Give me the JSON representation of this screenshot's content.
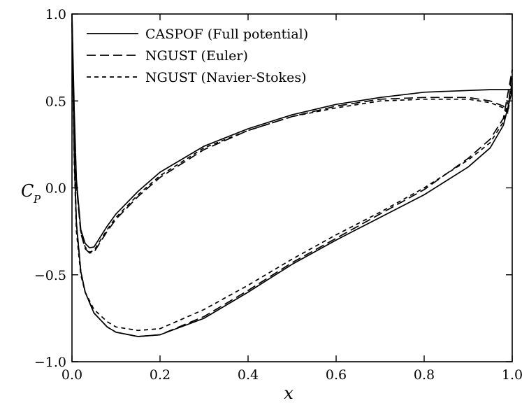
{
  "chart_data": {
    "type": "line",
    "title": "",
    "xlabel": "x",
    "ylabel": "C",
    "ylabel_sub": "P",
    "xlim": [
      0.0,
      1.0
    ],
    "ylim": [
      -1.0,
      1.0
    ],
    "x_ticks": [
      0.0,
      0.2,
      0.4,
      0.6,
      0.8,
      1.0
    ],
    "x_tick_labels": [
      "0.0",
      "0.2",
      "0.4",
      "0.6",
      "0.8",
      "1.0"
    ],
    "y_ticks": [
      -1.0,
      -0.5,
      0.0,
      0.5,
      1.0
    ],
    "y_tick_labels": [
      "−1.0",
      "−0.5",
      "0.0",
      "0.5",
      "1.0"
    ],
    "grid": false,
    "legend_position": "top-left",
    "series": [
      {
        "name": "CASPOF (Full potential)",
        "line_style": "solid",
        "upper_x": [
          0.0,
          0.005,
          0.01,
          0.02,
          0.03,
          0.04,
          0.05,
          0.06,
          0.08,
          0.1,
          0.15,
          0.2,
          0.3,
          0.4,
          0.5,
          0.6,
          0.7,
          0.8,
          0.9,
          0.95,
          0.98,
          1.0
        ],
        "upper_y": [
          1.0,
          0.45,
          0.05,
          -0.24,
          -0.32,
          -0.345,
          -0.34,
          -0.3,
          -0.22,
          -0.15,
          -0.02,
          0.09,
          0.24,
          0.34,
          0.42,
          0.48,
          0.52,
          0.55,
          0.56,
          0.565,
          0.565,
          0.565
        ],
        "lower_x": [
          0.0,
          0.005,
          0.01,
          0.02,
          0.03,
          0.05,
          0.08,
          0.1,
          0.15,
          0.2,
          0.3,
          0.4,
          0.5,
          0.6,
          0.7,
          0.8,
          0.9,
          0.95,
          0.98,
          1.0
        ],
        "lower_y": [
          1.0,
          0.2,
          -0.2,
          -0.48,
          -0.6,
          -0.72,
          -0.8,
          -0.83,
          -0.855,
          -0.845,
          -0.75,
          -0.6,
          -0.44,
          -0.3,
          -0.17,
          -0.04,
          0.12,
          0.23,
          0.36,
          0.56
        ]
      },
      {
        "name": "NGUST (Euler)",
        "line_style": "dashed",
        "upper_x": [
          0.0,
          0.005,
          0.01,
          0.02,
          0.03,
          0.04,
          0.05,
          0.06,
          0.08,
          0.1,
          0.15,
          0.2,
          0.3,
          0.4,
          0.5,
          0.6,
          0.7,
          0.8,
          0.9,
          0.95,
          0.98,
          0.99,
          1.0
        ],
        "upper_y": [
          0.95,
          0.4,
          0.02,
          -0.26,
          -0.35,
          -0.375,
          -0.37,
          -0.33,
          -0.25,
          -0.18,
          -0.05,
          0.06,
          0.22,
          0.33,
          0.41,
          0.47,
          0.51,
          0.52,
          0.52,
          0.5,
          0.47,
          0.44,
          0.68
        ],
        "lower_x": [
          0.0,
          0.005,
          0.01,
          0.02,
          0.03,
          0.05,
          0.08,
          0.1,
          0.15,
          0.2,
          0.3,
          0.4,
          0.5,
          0.6,
          0.7,
          0.8,
          0.9,
          0.95,
          0.98,
          1.0
        ],
        "lower_y": [
          0.95,
          0.2,
          -0.2,
          -0.48,
          -0.6,
          -0.72,
          -0.8,
          -0.83,
          -0.855,
          -0.845,
          -0.74,
          -0.59,
          -0.43,
          -0.29,
          -0.15,
          -0.01,
          0.17,
          0.28,
          0.4,
          0.68
        ]
      },
      {
        "name": "NGUST (Navier-Stokes)",
        "line_style": "short-dashed",
        "upper_x": [
          0.0,
          0.005,
          0.01,
          0.02,
          0.03,
          0.04,
          0.05,
          0.06,
          0.08,
          0.1,
          0.15,
          0.2,
          0.3,
          0.4,
          0.5,
          0.6,
          0.7,
          0.8,
          0.9,
          0.95,
          0.98,
          0.99,
          1.0
        ],
        "upper_y": [
          0.95,
          0.4,
          0.02,
          -0.25,
          -0.34,
          -0.37,
          -0.36,
          -0.32,
          -0.24,
          -0.17,
          -0.04,
          0.07,
          0.23,
          0.33,
          0.41,
          0.46,
          0.5,
          0.51,
          0.51,
          0.49,
          0.46,
          0.43,
          0.6
        ],
        "lower_x": [
          0.0,
          0.005,
          0.01,
          0.02,
          0.03,
          0.05,
          0.08,
          0.1,
          0.15,
          0.2,
          0.3,
          0.4,
          0.5,
          0.6,
          0.7,
          0.8,
          0.9,
          0.95,
          0.98,
          1.0
        ],
        "lower_y": [
          0.95,
          0.15,
          -0.25,
          -0.5,
          -0.6,
          -0.7,
          -0.77,
          -0.8,
          -0.82,
          -0.81,
          -0.7,
          -0.56,
          -0.41,
          -0.27,
          -0.14,
          0.0,
          0.16,
          0.26,
          0.38,
          0.6
        ]
      }
    ]
  }
}
